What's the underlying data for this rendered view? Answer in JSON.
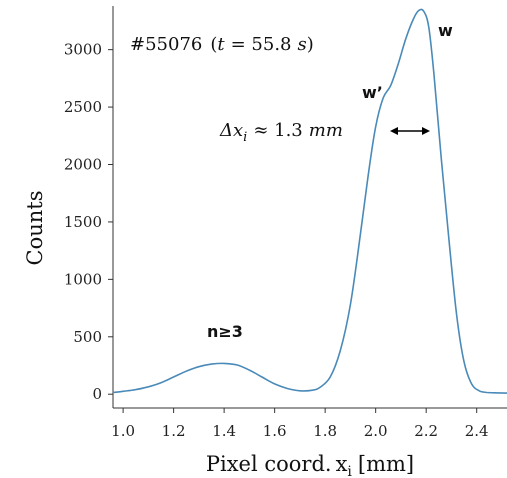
{
  "chart_data": {
    "type": "line",
    "title": "",
    "xlabel": "Pixel coord.",
    "xlabel_var": "x",
    "xlabel_sub": "i",
    "xlabel_unit": "[mm]",
    "ylabel": "Counts",
    "xlim": [
      0.96,
      2.52
    ],
    "ylim": [
      -120,
      3380
    ],
    "x_ticks": [
      1.0,
      1.2,
      1.4,
      1.6,
      1.8,
      2.0,
      2.2,
      2.4
    ],
    "x_tick_labels": [
      "1.0",
      "1.2",
      "1.4",
      "1.6",
      "1.8",
      "2.0",
      "2.2",
      "2.4"
    ],
    "y_ticks": [
      0,
      500,
      1000,
      1500,
      2000,
      2500,
      3000
    ],
    "y_tick_labels": [
      "0",
      "500",
      "1000",
      "1500",
      "2000",
      "2500",
      "3000"
    ],
    "grid": false,
    "legend": "none",
    "series_color": "#4a8ab8",
    "series": [
      {
        "x": [
          0.96,
          1.0,
          1.05,
          1.1,
          1.15,
          1.2,
          1.25,
          1.3,
          1.35,
          1.4,
          1.45,
          1.5,
          1.55,
          1.6,
          1.65,
          1.7,
          1.75,
          1.78,
          1.82,
          1.86,
          1.9,
          1.94,
          1.97,
          2.0,
          2.03,
          2.06,
          2.09,
          2.12,
          2.15,
          2.17,
          2.19,
          2.21,
          2.23,
          2.26,
          2.29,
          2.32,
          2.35,
          2.38,
          2.41,
          2.44,
          2.47,
          2.52
        ],
        "y": [
          15,
          25,
          40,
          65,
          100,
          150,
          200,
          240,
          262,
          268,
          255,
          210,
          150,
          90,
          50,
          30,
          35,
          60,
          150,
          380,
          780,
          1400,
          1900,
          2330,
          2580,
          2690,
          2880,
          3100,
          3270,
          3340,
          3335,
          3200,
          2800,
          2050,
          1350,
          700,
          280,
          90,
          30,
          15,
          12,
          10
        ]
      }
    ],
    "annotations": {
      "shot_label": "#55076",
      "time_label_open": "(",
      "time_var": "t",
      "time_eq": "= 55.8",
      "time_unit": "s",
      "time_label_close": ")",
      "delta_label": "Δx",
      "delta_sub": "i",
      "delta_value": "≈ 1.3",
      "delta_unit": "mm",
      "peak_w": "w",
      "peak_w_prime": "w’",
      "peak_n": "n≥3"
    }
  }
}
